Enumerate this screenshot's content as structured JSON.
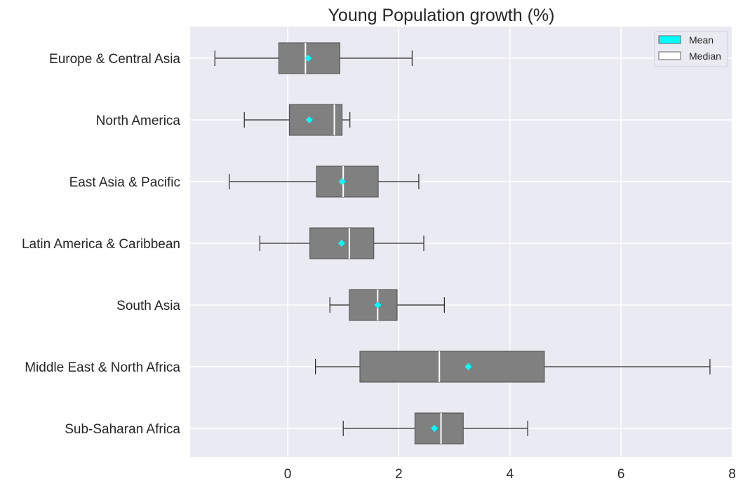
{
  "chart_data": {
    "type": "boxplot",
    "orientation": "horizontal",
    "title": "Young Population growth (%)",
    "xlabel": "",
    "ylabel": "",
    "xlim": [
      -1.75,
      8.0
    ],
    "xticks": [
      0,
      2,
      4,
      6,
      8
    ],
    "grid": true,
    "legend_placement": "top-right",
    "legend": [
      {
        "label": "Mean",
        "color": "#00ffff"
      },
      {
        "label": "Median",
        "color": "#ffffff"
      }
    ],
    "colors": {
      "background": "#eaeaf2",
      "box": "#808080",
      "mean_marker": "#00ffff",
      "median_line": "#ffffff",
      "whisker": "#262626"
    },
    "categories": [
      "Europe & Central Asia",
      "North America",
      "East Asia & Pacific",
      "Latin America & Caribbean",
      "South Asia",
      "Middle East & North Africa",
      "Sub-Saharan Africa"
    ],
    "series": [
      {
        "category": "Europe & Central Asia",
        "whislo": -1.31,
        "q1": -0.16,
        "median": 0.32,
        "q3": 0.94,
        "whishi": 2.24,
        "mean": 0.37
      },
      {
        "category": "North America",
        "whislo": -0.78,
        "q1": 0.03,
        "median": 0.84,
        "q3": 0.98,
        "whishi": 1.12,
        "mean": 0.39
      },
      {
        "category": "East Asia & Pacific",
        "whislo": -1.05,
        "q1": 0.52,
        "median": 1.0,
        "q3": 1.63,
        "whishi": 2.36,
        "mean": 0.98
      },
      {
        "category": "Latin America & Caribbean",
        "whislo": -0.5,
        "q1": 0.4,
        "median": 1.11,
        "q3": 1.55,
        "whishi": 2.45,
        "mean": 0.97
      },
      {
        "category": "South Asia",
        "whislo": 0.76,
        "q1": 1.11,
        "median": 1.62,
        "q3": 1.97,
        "whishi": 2.82,
        "mean": 1.62
      },
      {
        "category": "Middle East & North Africa",
        "whislo": 0.5,
        "q1": 1.3,
        "median": 2.73,
        "q3": 4.62,
        "whishi": 7.6,
        "mean": 3.25
      },
      {
        "category": "Sub-Saharan Africa",
        "whislo": 1.0,
        "q1": 2.29,
        "median": 2.76,
        "q3": 3.16,
        "whishi": 4.32,
        "mean": 2.64
      }
    ]
  }
}
